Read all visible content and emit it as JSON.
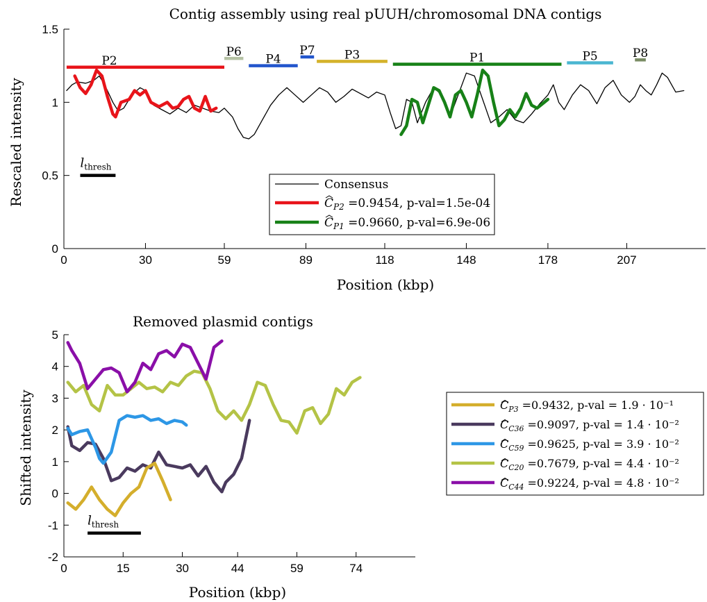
{
  "chart_data": [
    {
      "type": "line",
      "title": "Contig assembly using real pUUH/chromosomal DNA contigs",
      "xlabel": "Position (kbp)",
      "ylabel": "Rescaled intensity",
      "xlim": [
        0,
        236
      ],
      "ylim": [
        0,
        1.5
      ],
      "xticks": [
        0,
        30,
        59,
        89,
        118,
        148,
        178,
        207
      ],
      "xtick_labels": [
        "0",
        "30",
        "59",
        "89",
        "118",
        "148",
        "178",
        "207"
      ],
      "yticks": [
        0,
        0.5,
        1,
        1.5
      ],
      "ytick_labels": [
        "0",
        "0.5",
        "1",
        "1.5"
      ],
      "grid": false,
      "legend_position": "center",
      "legend": [
        {
          "label": "Consensus",
          "color": "#000000"
        },
        {
          "label": "ĈP2 =0.9454, p-val=1.5e-04",
          "color": "#e8141a"
        },
        {
          "label": "ĈP1 =0.9660, p-val=6.9e-06",
          "color": "#178117"
        }
      ],
      "threshold_label": "lthresh",
      "threshold_bar": {
        "x": [
          6,
          19
        ],
        "y": 0.5
      },
      "contig_bars": [
        {
          "label": "P2",
          "x": [
            1,
            59
          ],
          "y": 1.24,
          "color": "#e8141a"
        },
        {
          "label": "P6",
          "x": [
            59,
            66
          ],
          "y": 1.3,
          "color": "#b5c2a4"
        },
        {
          "label": "P4",
          "x": [
            68,
            86
          ],
          "y": 1.25,
          "color": "#2255cc"
        },
        {
          "label": "P7",
          "x": [
            87,
            92
          ],
          "y": 1.31,
          "color": "#2255cc"
        },
        {
          "label": "P3",
          "x": [
            93,
            119
          ],
          "y": 1.28,
          "color": "#d4b22a"
        },
        {
          "label": "P1",
          "x": [
            121,
            183
          ],
          "y": 1.26,
          "color": "#178117"
        },
        {
          "label": "P5",
          "x": [
            185,
            202
          ],
          "y": 1.27,
          "color": "#4bb6d1"
        },
        {
          "label": "P8",
          "x": [
            210,
            214
          ],
          "y": 1.29,
          "color": "#7a8c64"
        }
      ],
      "series": [
        {
          "name": "Consensus",
          "color": "#000000",
          "x": [
            1,
            3,
            5,
            8,
            11,
            13,
            15,
            18,
            20,
            22,
            25,
            28,
            30,
            33,
            36,
            39,
            42,
            45,
            48,
            51,
            54,
            57,
            59,
            62,
            64,
            66,
            68,
            70,
            73,
            76,
            79,
            82,
            85,
            88,
            91,
            94,
            97,
            100,
            103,
            106,
            109,
            112,
            115,
            118,
            120,
            122,
            124,
            126,
            128,
            130,
            133,
            136,
            139,
            142,
            145,
            148,
            151,
            154,
            157,
            160,
            163,
            166,
            169,
            172,
            175,
            178,
            180,
            182,
            184,
            187,
            190,
            193,
            196,
            199,
            202,
            205,
            208,
            210,
            212,
            214,
            216,
            218,
            220,
            222,
            225,
            228
          ],
          "y": [
            1.08,
            1.12,
            1.14,
            1.13,
            1.15,
            1.18,
            1.12,
            1.0,
            0.94,
            0.96,
            1.05,
            1.1,
            1.08,
            0.98,
            0.95,
            0.92,
            0.96,
            0.93,
            0.98,
            0.96,
            0.94,
            0.93,
            0.96,
            0.9,
            0.82,
            0.76,
            0.75,
            0.78,
            0.88,
            0.98,
            1.05,
            1.1,
            1.05,
            1.0,
            1.05,
            1.1,
            1.07,
            1.0,
            1.04,
            1.09,
            1.06,
            1.03,
            1.07,
            1.05,
            0.93,
            0.82,
            0.84,
            1.02,
            1.0,
            0.86,
            1.0,
            1.1,
            1.05,
            0.9,
            1.05,
            1.2,
            1.18,
            1.02,
            0.86,
            0.9,
            0.95,
            0.88,
            0.86,
            0.92,
            0.99,
            1.05,
            1.12,
            1.0,
            0.95,
            1.05,
            1.12,
            1.08,
            0.99,
            1.1,
            1.15,
            1.05,
            1.0,
            1.04,
            1.12,
            1.08,
            1.05,
            1.12,
            1.2,
            1.17,
            1.07,
            1.08
          ]
        },
        {
          "name": "P2",
          "color": "#e8141a",
          "x": [
            4,
            6,
            8,
            10,
            12,
            14,
            16,
            18,
            19,
            21,
            24,
            26,
            28,
            30,
            32,
            35,
            38,
            40,
            42,
            44,
            46,
            48,
            50,
            52,
            54,
            56
          ],
          "y": [
            1.18,
            1.1,
            1.06,
            1.12,
            1.22,
            1.18,
            1.04,
            0.92,
            0.9,
            1.0,
            1.02,
            1.08,
            1.05,
            1.08,
            1.0,
            0.97,
            1.0,
            0.96,
            0.97,
            1.02,
            1.04,
            0.96,
            0.94,
            1.04,
            0.94,
            0.96
          ]
        },
        {
          "name": "P1",
          "color": "#178117",
          "x": [
            124,
            126,
            128,
            130,
            132,
            134,
            136,
            138,
            140,
            142,
            144,
            146,
            148,
            150,
            152,
            154,
            156,
            158,
            160,
            162,
            164,
            166,
            168,
            170,
            172,
            174,
            176,
            178
          ],
          "y": [
            0.78,
            0.84,
            1.02,
            1.0,
            0.86,
            0.98,
            1.1,
            1.08,
            1.0,
            0.9,
            1.05,
            1.08,
            1.0,
            0.9,
            1.05,
            1.22,
            1.18,
            1.0,
            0.84,
            0.88,
            0.95,
            0.9,
            0.96,
            1.06,
            0.98,
            0.96,
            0.99,
            1.02
          ]
        }
      ]
    },
    {
      "type": "line",
      "title": "Removed plasmid contigs",
      "xlabel": "Position (kbp)",
      "ylabel": "Shifted intensity",
      "xlim": [
        0,
        89
      ],
      "ylim": [
        -2,
        5
      ],
      "xticks": [
        0,
        15,
        30,
        44,
        59,
        74
      ],
      "xtick_labels": [
        "0",
        "15",
        "30",
        "44",
        "59",
        "74"
      ],
      "yticks": [
        -2,
        -1,
        0,
        1,
        2,
        3,
        4,
        5
      ],
      "ytick_labels": [
        "-2",
        "-1",
        "0",
        "1",
        "2",
        "3",
        "4",
        "5"
      ],
      "grid": false,
      "legend_position": "outside-right",
      "threshold_label": "lthresh",
      "threshold_bar": {
        "x": [
          6,
          19.5
        ],
        "y": -1.25
      },
      "series": [
        {
          "name": "ĈP3 =0.9432, p-val = 1.9 · 10⁻¹",
          "color": "#d4ae2c",
          "x": [
            1,
            3,
            5,
            7,
            9,
            11,
            13,
            15,
            17,
            19,
            21,
            23,
            25,
            27
          ],
          "y": [
            -0.3,
            -0.5,
            -0.2,
            0.2,
            -0.2,
            -0.5,
            -0.7,
            -0.3,
            0.0,
            0.2,
            0.8,
            0.95,
            0.4,
            -0.2
          ]
        },
        {
          "name": "ĈC36 =0.9097, p-val = 1.4 · 10⁻²",
          "color": "#4a3a5e",
          "x": [
            1,
            2,
            4,
            6,
            8,
            10,
            12,
            14,
            16,
            18,
            20,
            22,
            24,
            26,
            28,
            30,
            32,
            34,
            36,
            38,
            40,
            41,
            43,
            45,
            47
          ],
          "y": [
            2.1,
            1.5,
            1.35,
            1.6,
            1.55,
            1.1,
            0.4,
            0.5,
            0.8,
            0.7,
            0.9,
            0.8,
            1.3,
            0.9,
            0.85,
            0.8,
            0.9,
            0.55,
            0.85,
            0.35,
            0.05,
            0.35,
            0.6,
            1.1,
            2.3
          ]
        },
        {
          "name": "ĈC59 =0.9625, p-val = 3.9 · 10⁻²",
          "color": "#2d97e6",
          "x": [
            1,
            2,
            4,
            6,
            8,
            9,
            10,
            12,
            14,
            16,
            18,
            20,
            22,
            24,
            26,
            28,
            30,
            31
          ],
          "y": [
            2.05,
            1.85,
            1.95,
            2.0,
            1.45,
            1.1,
            0.95,
            1.3,
            2.3,
            2.45,
            2.4,
            2.45,
            2.3,
            2.35,
            2.2,
            2.3,
            2.25,
            2.15
          ]
        },
        {
          "name": "ĈC20 =0.7679, p-val = 4.4 · 10⁻²",
          "color": "#b4c346",
          "x": [
            1,
            3,
            5,
            7,
            9,
            11,
            13,
            15,
            17,
            19,
            21,
            23,
            25,
            27,
            29,
            31,
            33,
            35,
            37,
            39,
            41,
            43,
            45,
            47,
            49,
            51,
            53,
            55,
            57,
            59,
            61,
            63,
            65,
            67,
            69,
            71,
            73,
            75
          ],
          "y": [
            3.5,
            3.2,
            3.4,
            2.8,
            2.6,
            3.4,
            3.1,
            3.1,
            3.3,
            3.5,
            3.3,
            3.35,
            3.2,
            3.5,
            3.4,
            3.7,
            3.85,
            3.8,
            3.3,
            2.6,
            2.35,
            2.6,
            2.3,
            2.8,
            3.5,
            3.4,
            2.8,
            2.3,
            2.25,
            1.9,
            2.6,
            2.7,
            2.2,
            2.5,
            3.3,
            3.1,
            3.5,
            3.65
          ]
        },
        {
          "name": "ĈC44 =0.9224, p-val = 4.8 · 10⁻²",
          "color": "#8a0fa8",
          "x": [
            1,
            2,
            4,
            6,
            8,
            10,
            12,
            14,
            16,
            18,
            20,
            22,
            24,
            26,
            28,
            30,
            32,
            34,
            36,
            38,
            40
          ],
          "y": [
            4.75,
            4.5,
            4.1,
            3.3,
            3.6,
            3.9,
            3.95,
            3.8,
            3.2,
            3.5,
            4.1,
            3.9,
            4.4,
            4.5,
            4.3,
            4.7,
            4.6,
            4.1,
            3.6,
            4.6,
            4.8
          ]
        }
      ]
    }
  ]
}
